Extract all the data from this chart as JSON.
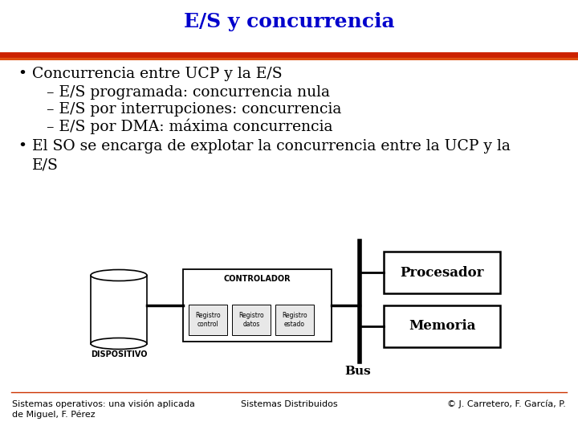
{
  "title": "E/S y concurrencia",
  "title_color": "#0000CC",
  "title_fontsize": 18,
  "bg_color": "#FFFFFF",
  "sep_color1": "#CC2200",
  "sep_color2": "#DD4400",
  "bullet1": "Concurrencia entre UCP y la E/S",
  "sub1": "E/S programada: concurrencia nula",
  "sub2": "E/S por interrupciones: concurrencia",
  "sub3": "E/S por DMA: máxima concurrencia",
  "bullet2_l1": "El SO se encarga de explotar la concurrencia entre la UCP y la",
  "bullet2_l2": "E/S",
  "text_color": "#000000",
  "text_fontsize": 13.5,
  "sub_fontsize": 13.5,
  "footer_left": "Sistemas operativos: una visión aplicada\nde Miguel, F. Pérez",
  "footer_center": "Sistemas Distribuidos",
  "footer_right": "© J. Carretero, F. García, P.",
  "footer_fontsize": 8,
  "procesador_label": "Procesador",
  "memoria_label": "Memoria",
  "controlador_label": "CONTROLADOR",
  "reg_control_label": "Registro\ncontrol",
  "reg_datos_label": "Registro\ndatos",
  "reg_estado_label": "Registro\nestado",
  "dispositivo_label": "DISPOSITIVO",
  "bus_label": "Bus"
}
